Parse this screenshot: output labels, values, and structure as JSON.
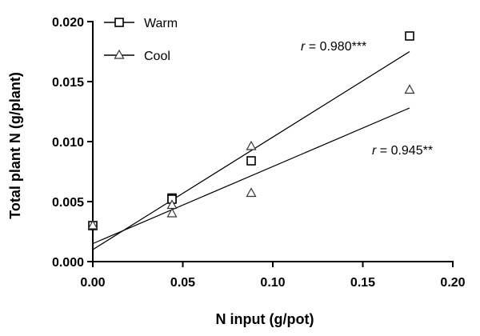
{
  "chart_data": {
    "type": "scatter",
    "xlabel": "N input (g/pot)",
    "ylabel": "Total plant N (g/plant)",
    "xlim": [
      0,
      0.2
    ],
    "ylim": [
      0,
      0.02
    ],
    "x_ticks": [
      "0.00",
      "0.05",
      "0.10",
      "0.15",
      "0.20"
    ],
    "y_ticks": [
      "0.000",
      "0.005",
      "0.010",
      "0.015",
      "0.020"
    ],
    "grid": false,
    "legend_position": "top-left",
    "series": [
      {
        "name": "Warm",
        "marker": "square",
        "points": [
          [
            0.0,
            0.003
          ],
          [
            0.044,
            0.0053
          ],
          [
            0.044,
            0.0052
          ],
          [
            0.088,
            0.0084
          ],
          [
            0.176,
            0.0188
          ]
        ],
        "fit": {
          "x": [
            0.0,
            0.176
          ],
          "y": [
            0.001,
            0.0175
          ]
        },
        "annotation": {
          "prefix": "r",
          "text": " = 0.980***"
        }
      },
      {
        "name": "Cool",
        "marker": "triangle",
        "points": [
          [
            0.0,
            0.003
          ],
          [
            0.044,
            0.0047
          ],
          [
            0.044,
            0.004
          ],
          [
            0.088,
            0.0096
          ],
          [
            0.088,
            0.0057
          ],
          [
            0.176,
            0.0143
          ]
        ],
        "fit": {
          "x": [
            0.0,
            0.176
          ],
          "y": [
            0.0015,
            0.0128
          ]
        },
        "annotation": {
          "prefix": "r",
          "text": " = 0.945**"
        }
      }
    ]
  }
}
